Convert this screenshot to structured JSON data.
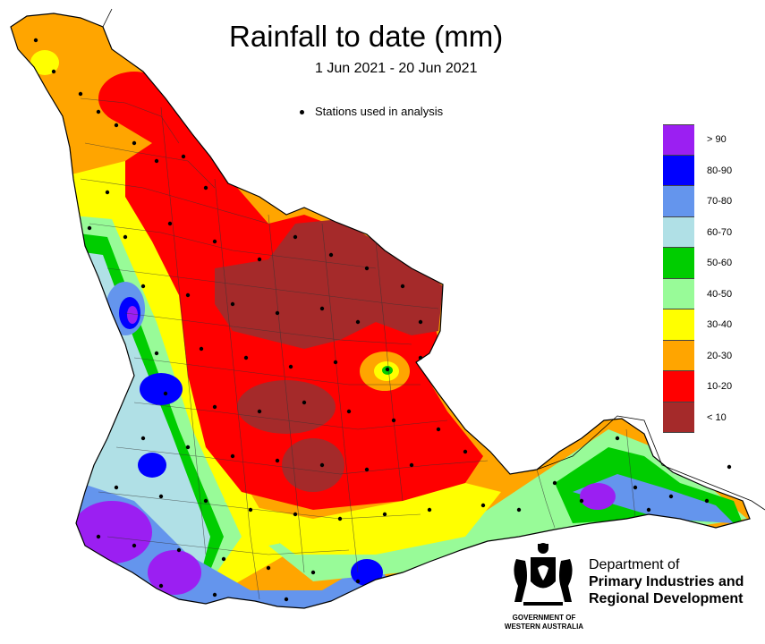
{
  "title": "Rainfall to date (mm)",
  "subtitle": "1 Jun 2021 - 20 Jun 2021",
  "stations_legend": "Stations used in analysis",
  "legend": {
    "items": [
      {
        "label": "> 90",
        "color": "#9b1ff2"
      },
      {
        "label": "80-90",
        "color": "#0000ff"
      },
      {
        "label": "70-80",
        "color": "#6495ed"
      },
      {
        "label": "60-70",
        "color": "#b0e0e6"
      },
      {
        "label": "50-60",
        "color": "#00cd00"
      },
      {
        "label": "40-50",
        "color": "#98fb98"
      },
      {
        "label": "30-40",
        "color": "#ffff00"
      },
      {
        "label": "20-30",
        "color": "#ffa500"
      },
      {
        "label": "10-20",
        "color": "#ff0000"
      },
      {
        "label": "< 10",
        "color": "#a52a2a"
      }
    ]
  },
  "department": {
    "line1": "Department of",
    "line2": "Primary Industries and",
    "line3": "Regional Development"
  },
  "government": {
    "line1": "GOVERNMENT OF",
    "line2": "WESTERN AUSTRALIA"
  },
  "icons": [
    "crest-icon",
    "station-dot-icon"
  ]
}
